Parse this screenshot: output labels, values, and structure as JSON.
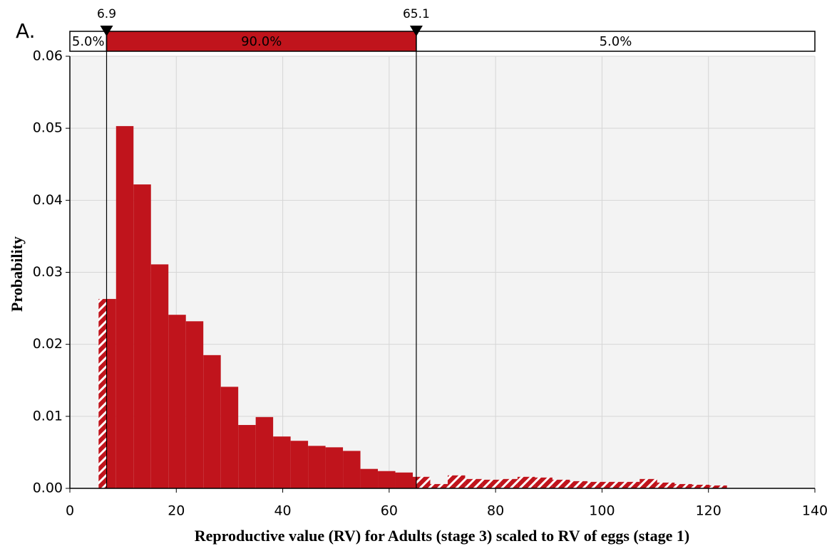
{
  "chart_data": {
    "type": "histogram",
    "panel_label": "A.",
    "xlabel": "Reproductive value (RV) for Adults (stage 3) scaled  to RV of eggs (stage 1)",
    "ylabel": "Probability",
    "bins": [
      5.4,
      8.68,
      11.96,
      15.24,
      18.52,
      21.8,
      25.08,
      28.36,
      31.64,
      34.92,
      38.2,
      41.48,
      44.76,
      48.04,
      51.32,
      54.6,
      57.88,
      61.16,
      64.44,
      67.72,
      71,
      74.28,
      77.56,
      80.84,
      84.12,
      87.4,
      90.68,
      93.96,
      97.24,
      100.52,
      103.8,
      107.08,
      110.36,
      113.64,
      116.92,
      120.2,
      123.48
    ],
    "values": [
      0.0263,
      0.0503,
      0.0422,
      0.0311,
      0.0241,
      0.0232,
      0.0185,
      0.0141,
      0.0088,
      0.0099,
      0.0072,
      0.0066,
      0.0059,
      0.0057,
      0.0052,
      0.0027,
      0.0024,
      0.0022,
      0.0016,
      0.0006,
      0.0018,
      0.0013,
      0.0012,
      0.0013,
      0.0016,
      0.0015,
      0.0012,
      0.001,
      0.0009,
      0.0009,
      0.0009,
      0.0013,
      0.0008,
      0.0006,
      0.0005,
      0.0004
    ],
    "color": "#c0141c",
    "delimiters": [
      6.9,
      65.1
    ],
    "probability_bands": [
      {
        "value": 5,
        "label": "5.0%"
      },
      {
        "value": 90,
        "label": "90.0%"
      },
      {
        "value": 5,
        "label": "5.0%"
      }
    ],
    "xlim": [
      0,
      140
    ],
    "xticks": [
      0,
      20,
      40,
      60,
      80,
      100,
      120,
      140
    ],
    "ylim": [
      0,
      0.06
    ],
    "yticks": [
      {
        "value": 0,
        "label": "0.00"
      },
      {
        "value": 0.01,
        "label": "0.01"
      },
      {
        "value": 0.02,
        "label": "0.02"
      },
      {
        "value": 0.03,
        "label": "0.03"
      },
      {
        "value": 0.04,
        "label": "0.04"
      },
      {
        "value": 0.05,
        "label": "0.05"
      },
      {
        "value": 0.06,
        "label": "0.06"
      }
    ],
    "grid": true
  }
}
